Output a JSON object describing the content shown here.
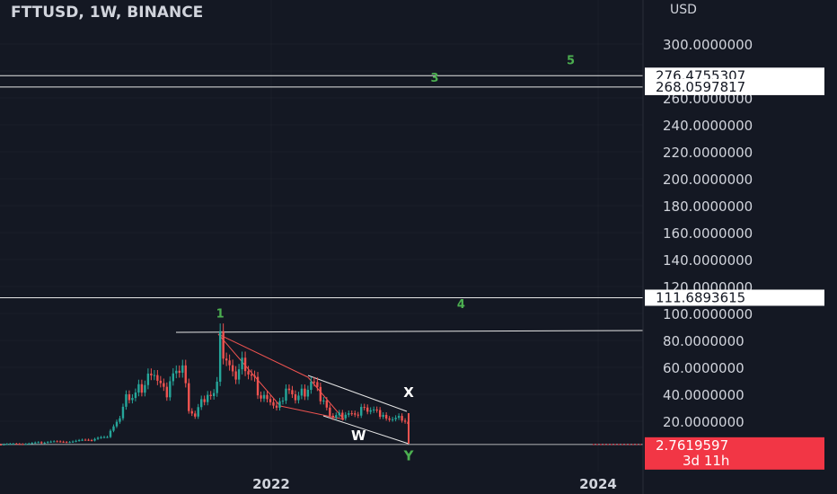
{
  "title": "FTTUSD, 1W, BINANCE",
  "currency": "USD",
  "colors": {
    "background": "#141823",
    "up": "#26a69a",
    "down": "#ef5350",
    "axis_text": "#d1d4dc",
    "wave_label": "#4caf50",
    "price_tag": "#f23645",
    "grid": "#2a2e39"
  },
  "chart_data": {
    "type": "candlestick",
    "title": "FTTUSD, 1W, BINANCE",
    "ylabel": "USD",
    "ylim": [
      0,
      320
    ],
    "yticks": [
      20,
      40,
      60,
      80,
      100,
      120,
      140,
      160,
      180,
      200,
      220,
      240,
      260,
      280,
      300
    ],
    "ytick_labels": [
      "20.0000000",
      "40.0000000",
      "60.0000000",
      "80.0000000",
      "100.0000000",
      "120.0000000",
      "140.0000000",
      "160.0000000",
      "180.0000000",
      "200.0000000",
      "220.0000000",
      "240.0000000",
      "260.0000000",
      "280.0000000",
      "300.0000000"
    ],
    "xticks": [
      {
        "label": "2022",
        "date": "2022-01-01"
      },
      {
        "label": "2024",
        "date": "2024-01-01"
      }
    ],
    "grid": true,
    "date_range": [
      "2019-08-01",
      "2022-11-13"
    ],
    "close_series": [
      [
        "2019-08-01",
        1.5
      ],
      [
        "2019-11-01",
        1.8
      ],
      [
        "2020-02-01",
        2.2
      ],
      [
        "2020-05-01",
        2.5
      ],
      [
        "2020-08-01",
        4.0
      ],
      [
        "2020-10-01",
        5.0
      ],
      [
        "2020-12-01",
        6.0
      ],
      [
        "2021-01-01",
        9.0
      ],
      [
        "2021-01-15",
        15.0
      ],
      [
        "2021-02-01",
        25.0
      ],
      [
        "2021-02-15",
        40.0
      ],
      [
        "2021-03-01",
        38.0
      ],
      [
        "2021-03-15",
        45.0
      ],
      [
        "2021-04-01",
        55.0
      ],
      [
        "2021-04-15",
        60.0
      ],
      [
        "2021-05-01",
        50.0
      ],
      [
        "2021-05-15",
        40.0
      ],
      [
        "2021-06-01",
        55.0
      ],
      [
        "2021-06-15",
        60.0
      ],
      [
        "2021-07-01",
        30.0
      ],
      [
        "2021-07-15",
        22.0
      ],
      [
        "2021-08-01",
        35.0
      ],
      [
        "2021-08-15",
        40.0
      ],
      [
        "2021-09-01",
        50.0
      ],
      [
        "2021-09-09",
        85.0
      ],
      [
        "2021-09-15",
        65.0
      ],
      [
        "2021-10-01",
        55.0
      ],
      [
        "2021-10-15",
        50.0
      ],
      [
        "2021-11-01",
        65.0
      ],
      [
        "2021-11-15",
        55.0
      ],
      [
        "2021-12-01",
        45.0
      ],
      [
        "2021-12-15",
        38.0
      ],
      [
        "2022-01-01",
        38.0
      ],
      [
        "2022-01-15",
        32.0
      ],
      [
        "2022-02-01",
        40.0
      ],
      [
        "2022-02-15",
        38.0
      ],
      [
        "2022-03-01",
        35.0
      ],
      [
        "2022-03-15",
        42.0
      ],
      [
        "2022-04-01",
        48.0
      ],
      [
        "2022-04-15",
        40.0
      ],
      [
        "2022-05-01",
        35.0
      ],
      [
        "2022-05-15",
        25.0
      ],
      [
        "2022-06-01",
        27.0
      ],
      [
        "2022-06-15",
        22.0
      ],
      [
        "2022-07-01",
        25.0
      ],
      [
        "2022-07-15",
        27.0
      ],
      [
        "2022-08-01",
        28.0
      ],
      [
        "2022-08-15",
        26.0
      ],
      [
        "2022-09-01",
        25.0
      ],
      [
        "2022-09-15",
        24.0
      ],
      [
        "2022-10-01",
        24.0
      ],
      [
        "2022-10-15",
        23.0
      ],
      [
        "2022-11-01",
        22.0
      ],
      [
        "2022-11-08",
        2.76
      ]
    ],
    "horizontal_levels": [
      {
        "value": 276.4755307,
        "label": "276.4755307"
      },
      {
        "value": 268.0597817,
        "label": "268.0597817"
      },
      {
        "value": 111.6893615,
        "label": "111.6893615"
      }
    ],
    "current_price": {
      "value": 2.7619597,
      "label": "2.7619597",
      "countdown": "3d 11h"
    },
    "wave_labels": [
      {
        "text": "1",
        "date": "2021-09-09",
        "price": 97
      },
      {
        "text": "3",
        "date": "2023-01-01",
        "price": 272
      },
      {
        "text": "5",
        "date": "2023-11-01",
        "price": 285
      },
      {
        "text": "4",
        "date": "2023-03-01",
        "price": 104
      }
    ],
    "pattern_labels": [
      {
        "text": "X",
        "date": "2022-11-08",
        "price": 38
      },
      {
        "text": "W",
        "date": "2022-07-15",
        "price": 6
      },
      {
        "text": "Y",
        "date": "2022-11-08",
        "price": -9
      }
    ]
  }
}
